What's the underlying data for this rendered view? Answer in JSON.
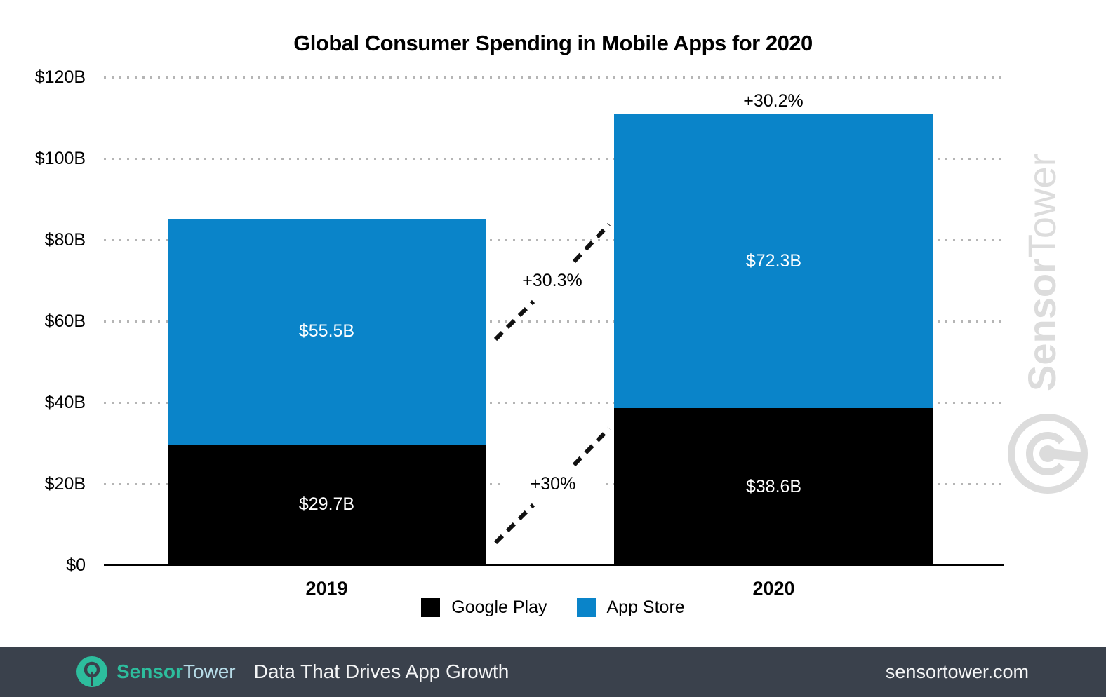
{
  "chart_data": {
    "type": "bar",
    "stacked": true,
    "title": "Global Consumer Spending in Mobile Apps for 2020",
    "categories": [
      "2019",
      "2020"
    ],
    "series": [
      {
        "name": "Google Play",
        "color": "#000000",
        "values": [
          29.7,
          38.6
        ],
        "labels": [
          "$29.7B",
          "$38.6B"
        ]
      },
      {
        "name": "App Store",
        "color": "#0a84c9",
        "values": [
          55.5,
          72.3
        ],
        "labels": [
          "$55.5B",
          "$72.3B"
        ]
      }
    ],
    "ylim": [
      0,
      120
    ],
    "yticks": [
      "$120B",
      "$100B",
      "$80B",
      "$60B",
      "$40B",
      "$20B",
      "$0"
    ],
    "grid": "horizontal-dotted",
    "legend_position": "bottom",
    "annotations": {
      "total_growth": "+30.2%",
      "app_store_growth": "+30.3%",
      "google_play_growth": "+30%"
    }
  },
  "watermark": {
    "bold": "Sensor",
    "light": "Tower"
  },
  "footer": {
    "brand_sensor": "Sensor",
    "brand_tower": "Tower",
    "tagline": "Data That Drives App Growth",
    "url": "sensortower.com"
  },
  "colors": {
    "app_store_blue": "#0a84c9",
    "google_play_black": "#000000",
    "footer_bg": "#3a414c",
    "brand_teal": "#2dbd9d",
    "brand_tower_light": "#b7dce8",
    "watermark_gray": "#dcdcdc"
  }
}
